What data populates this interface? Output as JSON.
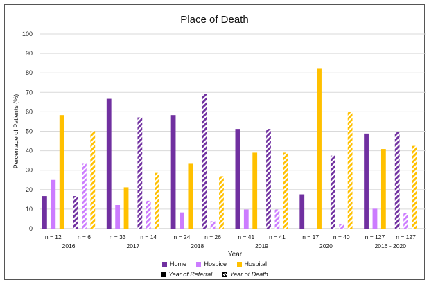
{
  "chart_data": {
    "type": "bar",
    "title": "Place of Death",
    "xlabel": "Year",
    "ylabel": "Percentage of Patients (%)",
    "ylim": [
      0,
      100
    ],
    "yticks": [
      0,
      10,
      20,
      30,
      40,
      50,
      60,
      70,
      80,
      90,
      100
    ],
    "grid": true,
    "legend_position": "bottom",
    "categories": [
      "2016",
      "2017",
      "2018",
      "2019",
      "2020",
      "2016 - 2020"
    ],
    "series_names": [
      "Home",
      "Hospice",
      "Hospital"
    ],
    "series_colors": {
      "Home": "#7030a0",
      "Hospice": "#cc7cff",
      "Hospital": "#ffc000"
    },
    "groups": [
      "Year of Referral",
      "Year of Death"
    ],
    "data": [
      {
        "category": "2016",
        "referral": {
          "n": "n = 12",
          "Home": 16.7,
          "Hospice": 25.0,
          "Hospital": 58.3
        },
        "death": {
          "n": "n = 6",
          "Home": 16.7,
          "Hospice": 33.3,
          "Hospital": 50.0
        }
      },
      {
        "category": "2017",
        "referral": {
          "n": "n = 33",
          "Home": 66.7,
          "Hospice": 12.1,
          "Hospital": 21.2
        },
        "death": {
          "n": "n = 14",
          "Home": 57.1,
          "Hospice": 14.3,
          "Hospital": 28.6
        }
      },
      {
        "category": "2018",
        "referral": {
          "n": "n = 24",
          "Home": 58.3,
          "Hospice": 8.3,
          "Hospital": 33.3
        },
        "death": {
          "n": "n = 26",
          "Home": 69.2,
          "Hospice": 3.8,
          "Hospital": 26.9
        }
      },
      {
        "category": "2019",
        "referral": {
          "n": "n = 41",
          "Home": 51.2,
          "Hospice": 9.8,
          "Hospital": 39.0
        },
        "death": {
          "n": "n = 41",
          "Home": 51.2,
          "Hospice": 9.8,
          "Hospital": 39.0
        }
      },
      {
        "category": "2020",
        "referral": {
          "n": "n = 17",
          "Home": 17.6,
          "Hospice": 0.0,
          "Hospital": 82.4
        },
        "death": {
          "n": "n = 40",
          "Home": 37.5,
          "Hospice": 2.5,
          "Hospital": 60.0
        }
      },
      {
        "category": "2016 - 2020",
        "referral": {
          "n": "n = 127",
          "Home": 48.8,
          "Hospice": 10.2,
          "Hospital": 40.9
        },
        "death": {
          "n": "n = 127",
          "Home": 49.6,
          "Hospice": 7.9,
          "Hospital": 42.5
        }
      }
    ]
  },
  "legend": {
    "home": "Home",
    "hospice": "Hospice",
    "hospital": "Hospital",
    "referral": "Year of Referral",
    "death": "Year of Death"
  }
}
